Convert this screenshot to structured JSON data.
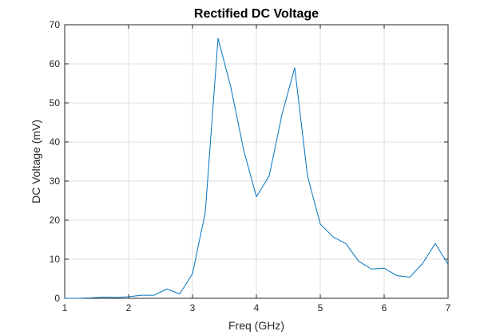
{
  "chart_data": {
    "type": "line",
    "title": "Rectified DC Voltage",
    "xlabel": "Freq (GHz)",
    "ylabel": "DC Voltage (mV)",
    "xlim": [
      1,
      7
    ],
    "ylim": [
      0,
      70
    ],
    "xticks": [
      1,
      2,
      3,
      4,
      5,
      6,
      7
    ],
    "yticks": [
      0,
      10,
      20,
      30,
      40,
      50,
      60,
      70
    ],
    "grid": true,
    "legend": "none",
    "series": [
      {
        "color": "#0072BD",
        "x": [
          1.0,
          1.2,
          1.4,
          1.6,
          1.8,
          2.0,
          2.2,
          2.4,
          2.6,
          2.8,
          3.0,
          3.2,
          3.4,
          3.6,
          3.8,
          4.0,
          4.2,
          4.4,
          4.6,
          4.8,
          5.0,
          5.2,
          5.4,
          5.6,
          5.8,
          6.0,
          6.2,
          6.4,
          6.6,
          6.8,
          7.0
        ],
        "y": [
          0.0,
          0.0,
          0.1,
          0.3,
          0.2,
          0.4,
          0.8,
          0.8,
          2.4,
          1.1,
          6.3,
          22.0,
          66.5,
          54.0,
          38.0,
          26.0,
          31.3,
          47.0,
          59.0,
          31.3,
          19.0,
          15.7,
          14.0,
          9.5,
          7.5,
          7.7,
          5.8,
          5.4,
          8.9,
          14.0,
          8.7
        ]
      }
    ]
  }
}
